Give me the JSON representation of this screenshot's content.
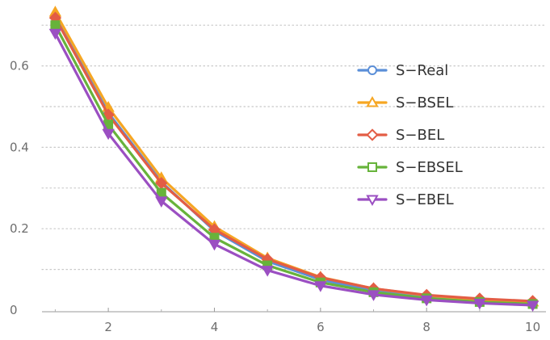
{
  "chart_data": {
    "type": "line",
    "title": "",
    "xlabel": "",
    "ylabel": "",
    "x": [
      1,
      2,
      3,
      4,
      5,
      6,
      7,
      8,
      9,
      10
    ],
    "xlim": [
      0.75,
      10.25
    ],
    "ylim": [
      0,
      0.75
    ],
    "xticks": [
      2,
      4,
      6,
      8,
      10
    ],
    "xtick_labels": [
      "2",
      "4",
      "6",
      "8",
      "10"
    ],
    "yticks": [
      0,
      0.2,
      0.4,
      0.6
    ],
    "ytick_labels": [
      "0",
      "0.2",
      "0.4",
      "0.6"
    ],
    "y_gridlines": [
      0.1,
      0.2,
      0.3,
      0.4,
      0.5,
      0.6,
      0.7
    ],
    "grid": true,
    "legend_position": "right",
    "series": [
      {
        "name": "S−Real",
        "color": "#5b8fd8",
        "marker": "circle",
        "values": [
          0.72,
          0.485,
          0.315,
          0.195,
          0.12,
          0.075,
          0.048,
          0.032,
          0.022,
          0.016
        ]
      },
      {
        "name": "S−BSEL",
        "color": "#f6a623",
        "marker": "triangle",
        "values": [
          0.732,
          0.498,
          0.325,
          0.205,
          0.128,
          0.081,
          0.053,
          0.036,
          0.026,
          0.02
        ]
      },
      {
        "name": "S−BEL",
        "color": "#e35d45",
        "marker": "diamond",
        "values": [
          0.718,
          0.48,
          0.312,
          0.198,
          0.125,
          0.08,
          0.053,
          0.037,
          0.028,
          0.022
        ]
      },
      {
        "name": "S−EBSEL",
        "color": "#67b33b",
        "marker": "square",
        "values": [
          0.7,
          0.456,
          0.288,
          0.178,
          0.11,
          0.068,
          0.044,
          0.029,
          0.02,
          0.015
        ]
      },
      {
        "name": "S−EBEL",
        "color": "#9b4fc2",
        "marker": "triangle-down",
        "values": [
          0.68,
          0.434,
          0.268,
          0.162,
          0.098,
          0.06,
          0.038,
          0.025,
          0.017,
          0.012
        ]
      }
    ]
  }
}
